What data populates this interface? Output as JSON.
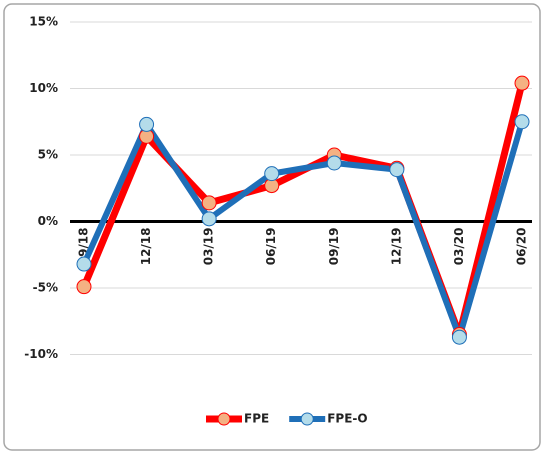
{
  "chart_data": {
    "type": "line",
    "categories": [
      "09/18",
      "12/18",
      "03/19",
      "06/19",
      "09/19",
      "12/19",
      "03/20",
      "06/20"
    ],
    "series": [
      {
        "name": "FPE",
        "color": "#ff0000",
        "marker_fill": "#f4b183",
        "values": [
          -4.9,
          6.4,
          1.4,
          2.7,
          5.0,
          4.0,
          -8.5,
          10.4
        ]
      },
      {
        "name": "FPE-O",
        "color": "#1f6fb8",
        "marker_fill": "#b4dcea",
        "values": [
          -3.2,
          7.3,
          0.2,
          3.6,
          4.4,
          3.9,
          -8.7,
          7.5
        ]
      }
    ],
    "ylim": [
      -15,
      15
    ],
    "yticks": [
      {
        "value": -10,
        "label": "-10%"
      },
      {
        "value": -5,
        "label": "-5%"
      },
      {
        "value": 0,
        "label": "0%"
      },
      {
        "value": 5,
        "label": "5%"
      },
      {
        "value": 10,
        "label": "10%"
      },
      {
        "value": 15,
        "label": "15%"
      }
    ],
    "grid": true,
    "legend": "bottom"
  }
}
